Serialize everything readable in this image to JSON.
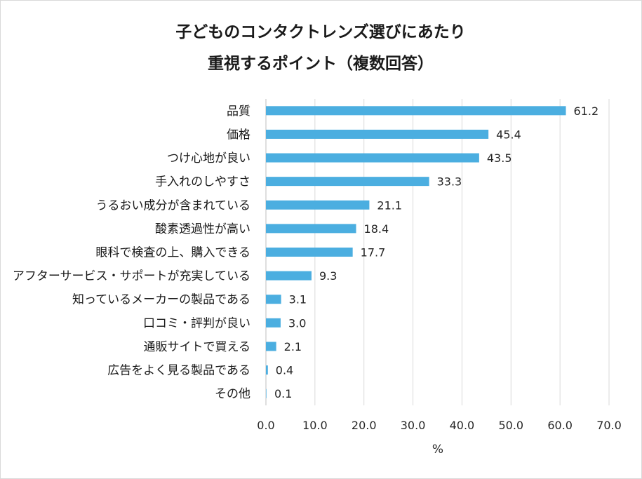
{
  "chart_data": {
    "type": "bar",
    "orientation": "horizontal",
    "title_lines": [
      "子どものコンタクトレンズ選びにあたり",
      "重視するポイント（複数回答）"
    ],
    "categories": [
      "品質",
      "価格",
      "つけ心地が良い",
      "手入れのしやすさ",
      "うるおい成分が含まれている",
      "酸素透過性が高い",
      "眼科で検査の上、購入できる",
      "アフターサービス・サポートが充実している",
      "知っているメーカーの製品である",
      "口コミ・評判が良い",
      "通販サイトで買える",
      "広告をよく見る製品である",
      "その他"
    ],
    "values": [
      61.2,
      45.4,
      43.5,
      33.3,
      21.1,
      18.4,
      17.7,
      9.3,
      3.1,
      3.0,
      2.1,
      0.4,
      0.1
    ],
    "value_labels": [
      "61.2",
      "45.4",
      "43.5",
      "33.3",
      "21.1",
      "18.4",
      "17.7",
      "9.3",
      "3.1",
      "3.0",
      "2.1",
      "0.4",
      "0.1"
    ],
    "xlim": [
      0,
      70
    ],
    "xticks": [
      "0.0",
      "10.0",
      "20.0",
      "30.0",
      "40.0",
      "50.0",
      "60.0",
      "70.0"
    ],
    "xlabel": "%",
    "ylabel": "",
    "grid": "vertical",
    "legend": "none",
    "bar_color": "#4BAEE0"
  }
}
